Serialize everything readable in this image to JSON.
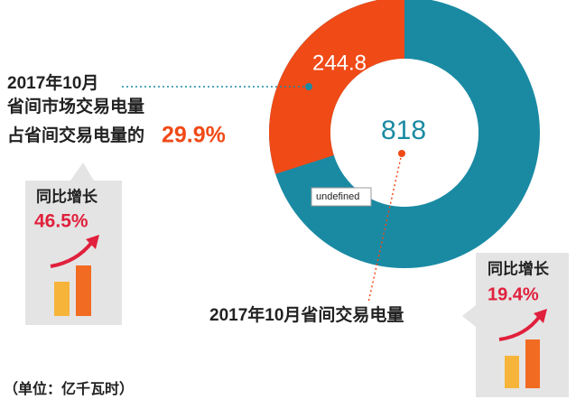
{
  "header": {
    "date": "2017年10月",
    "market_label": "省间市场交易电量",
    "share_label": "占省间交易电量的",
    "share": "29.9%"
  },
  "donut": {
    "market_value": 244.8,
    "total_value": 818,
    "market_color": "#f04a17",
    "total_color": "#1a8aa3",
    "tooltip": "undefined"
  },
  "left_box": {
    "title": "同比增长",
    "growth": "46.5%"
  },
  "total_label": "2017年10月省间交易电量",
  "right_box": {
    "title": "同比增长",
    "growth": "19.4%"
  },
  "unit": "（单位：亿千瓦时）"
}
